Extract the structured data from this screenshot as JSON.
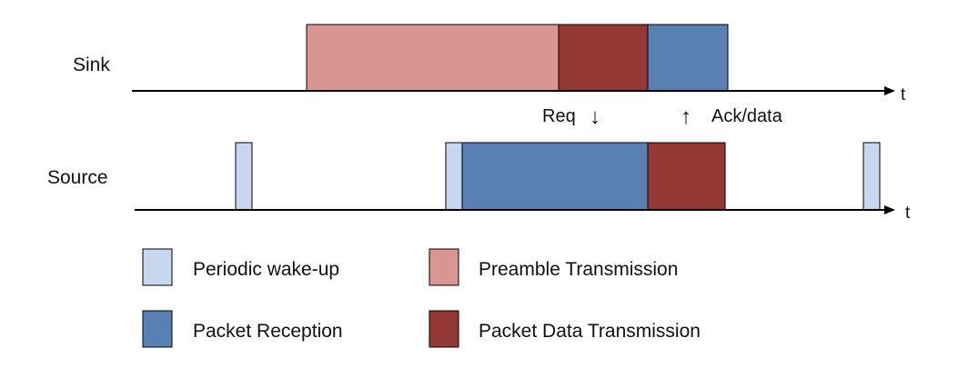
{
  "tracks": {
    "sink": {
      "label": "Sink",
      "axis_label": "t"
    },
    "source": {
      "label": "Source",
      "axis_label": "t"
    }
  },
  "signals": {
    "req": {
      "label": "Req",
      "arrow": "↓"
    },
    "ack": {
      "label": "Ack/data",
      "arrow": "↑"
    }
  },
  "legend": {
    "periodic_wakeup": "Periodic wake-up",
    "preamble_transmission": "Preamble Transmission",
    "packet_reception": "Packet Reception",
    "packet_data_transmission": "Packet Data Transmission"
  },
  "colors": {
    "periodic_wakeup": "#c6d7ee",
    "preamble_transmission": "#d99592",
    "packet_reception": "#5880b3",
    "packet_data_transmission": "#943834",
    "axis": "#000000"
  }
}
